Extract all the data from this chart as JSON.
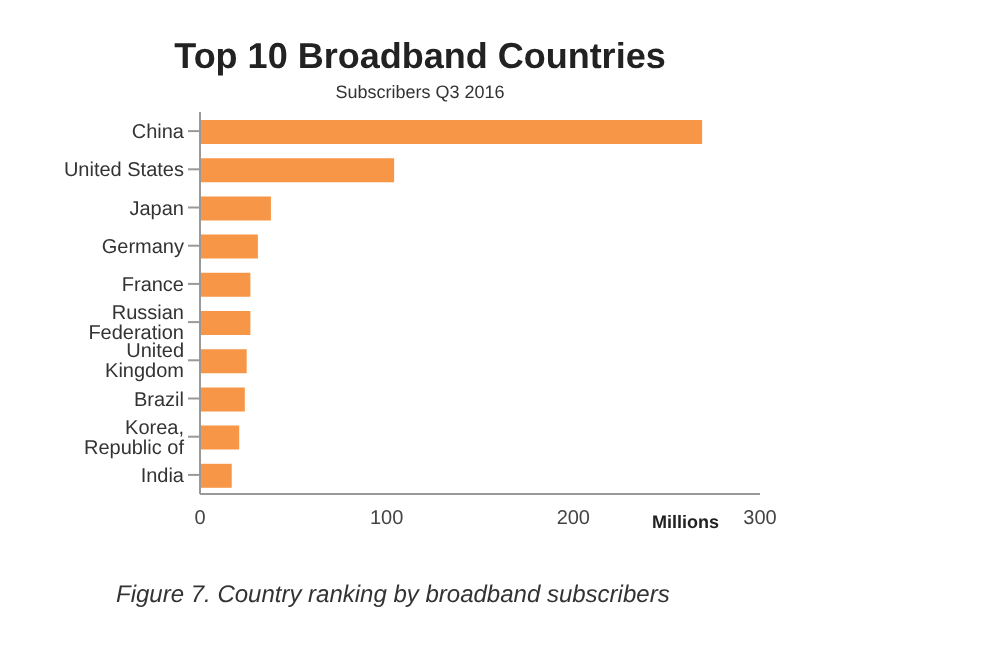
{
  "chart_data": {
    "type": "bar",
    "orientation": "horizontal",
    "title": "Top 10 Broadband Countries",
    "subtitle": "Subscribers Q3 2016",
    "xlabel": "Millions",
    "categories": [
      "China",
      "United States",
      "Japan",
      "Germany",
      "France",
      "Russian Federation",
      "United Kingdom",
      "Brazil",
      "Korea, Republic of",
      "India"
    ],
    "values": [
      269,
      104,
      38,
      31,
      27,
      27,
      25,
      24,
      21,
      17
    ],
    "color": "#f79646",
    "xlim": [
      0,
      300
    ],
    "xticks": [
      0,
      100,
      200,
      300
    ],
    "grid": false,
    "legend": false,
    "annotations": [
      "Figure 7. Country ranking by broadband subscribers"
    ]
  }
}
